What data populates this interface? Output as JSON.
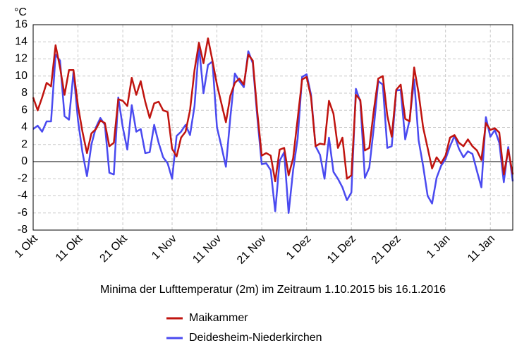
{
  "chart_data": {
    "type": "line",
    "title": "Minima der Lufttemperatur (2m) im Zeitraum 1.10.2015 bis 16.1.2016",
    "y_label": "°C",
    "categories": [
      "1 Okt",
      null,
      null,
      null,
      null,
      null,
      null,
      null,
      null,
      null,
      "11 Okt",
      null,
      null,
      null,
      null,
      null,
      null,
      null,
      null,
      null,
      "21 Okt",
      null,
      null,
      null,
      null,
      null,
      null,
      null,
      null,
      null,
      null,
      "1 Nov",
      null,
      null,
      null,
      null,
      null,
      null,
      null,
      null,
      null,
      "11 Nov",
      null,
      null,
      null,
      null,
      null,
      null,
      null,
      null,
      null,
      "21 Nov",
      null,
      null,
      null,
      null,
      null,
      null,
      null,
      null,
      null,
      "1 Dez",
      null,
      null,
      null,
      null,
      null,
      null,
      null,
      null,
      null,
      "11 Dez",
      null,
      null,
      null,
      null,
      null,
      null,
      null,
      null,
      null,
      "21 Dez",
      null,
      null,
      null,
      null,
      null,
      null,
      null,
      null,
      null,
      null,
      "1 Jan",
      null,
      null,
      null,
      null,
      null,
      null,
      null,
      null,
      null,
      "11 Jan",
      null,
      null,
      null,
      null,
      null
    ],
    "series": [
      {
        "name": "Maikammer",
        "color": "#c0140f",
        "values": [
          7.5,
          6,
          7.5,
          9.2,
          8.8,
          13.6,
          11,
          7.8,
          10.7,
          10.7,
          6.5,
          3.5,
          1.0,
          3.3,
          3.8,
          4.8,
          4.5,
          1.8,
          2.2,
          7.3,
          7.1,
          6.5,
          9.8,
          7.8,
          9.4,
          7,
          5.1,
          6.8,
          7,
          6,
          5.8,
          1.5,
          0.6,
          2.8,
          3.5,
          6,
          10.7,
          13.9,
          11.5,
          14.4,
          11.8,
          9,
          6.8,
          4.6,
          7.7,
          9.2,
          9.7,
          9,
          12.5,
          11.8,
          5.8,
          0.7,
          1,
          0.7,
          -2.3,
          1.4,
          1.6,
          -1.6,
          0.4,
          5,
          9.6,
          9.9,
          7.5,
          1.8,
          2.1,
          2,
          7.1,
          5.6,
          1.6,
          2.8,
          -2,
          -1.6,
          7.8,
          7.2,
          1.3,
          1.6,
          6,
          9.7,
          10,
          5.4,
          2.9,
          8.4,
          9,
          5,
          4.7,
          11,
          8,
          4,
          1.6,
          -0.8,
          0.5,
          -0.2,
          0.7,
          2.8,
          3.1,
          2.2,
          1.8,
          2.6,
          1.8,
          1.3,
          0.2,
          4.5,
          3.7,
          3.9,
          3.4,
          -1.5,
          1.4,
          -1.5
        ]
      },
      {
        "name": "Deidesheim-Niederkirchen",
        "color": "#4a4af0",
        "values": [
          3.8,
          4.2,
          3.5,
          4.7,
          4.7,
          12.5,
          11.8,
          5.3,
          4.9,
          10.5,
          4.8,
          1.1,
          -1.7,
          2,
          4,
          5.1,
          4.3,
          -1.3,
          -1.5,
          7.5,
          4,
          1.4,
          6.6,
          3.5,
          3.8,
          1,
          1.1,
          4.3,
          2.2,
          0.5,
          -0.2,
          -2,
          3,
          3.5,
          4.3,
          3.1,
          6.5,
          13.5,
          8,
          11.3,
          11.7,
          4,
          1.8,
          -0.6,
          5.2,
          10.3,
          9.4,
          8.7,
          12.9,
          11.5,
          5.2,
          -0.3,
          -0.2,
          -1,
          -5.8,
          0.1,
          1.1,
          -6,
          -1,
          2.7,
          9.9,
          10.2,
          7.8,
          1.8,
          0.8,
          -2,
          2.8,
          -1.2,
          -2,
          -3,
          -4.5,
          -3.6,
          8.5,
          7,
          -1.9,
          -0.7,
          4,
          9.4,
          9,
          1.6,
          1.8,
          8.3,
          8.4,
          2.6,
          4.9,
          9.6,
          2.5,
          -0.5,
          -4,
          -4.9,
          -1.9,
          -0.5,
          0.3,
          1.8,
          3,
          1.5,
          0.5,
          1.2,
          0.9,
          -1.1,
          -3,
          5.2,
          2.9,
          3.7,
          2.2,
          -2.4,
          1.7,
          -2.3
        ]
      }
    ],
    "ylim": [
      -8,
      16
    ],
    "yticks": [
      -8,
      -6,
      -4,
      -2,
      0,
      2,
      4,
      6,
      8,
      10,
      12,
      14,
      16
    ],
    "grid": true
  }
}
